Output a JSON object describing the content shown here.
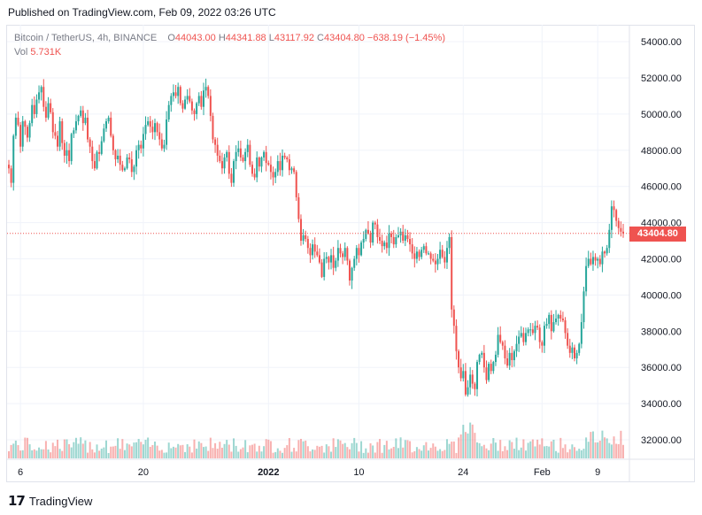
{
  "header": {
    "published": "Published on TradingView.com, Feb 09, 2022 03:26 UTC"
  },
  "legend": {
    "symbol": "Bitcoin / TetherUS, 4h, BINANCE",
    "o_label": "O",
    "o_value": "44043.00",
    "h_label": "H",
    "h_value": "44341.88",
    "l_label": "L",
    "l_value": "43117.92",
    "c_label": "C",
    "c_value": "43404.80",
    "change": "−638.19 (−1.45%)",
    "vol_label": "Vol",
    "vol_value": "5.731K"
  },
  "footer": {
    "logo": "𝟭𝟳",
    "brand": "TradingView"
  },
  "price_tag": "43404.80",
  "colors": {
    "up": "#26a69a",
    "down": "#ef5350",
    "grid": "#f0f3fa",
    "last": "#ef5350"
  },
  "chart_data": {
    "type": "candlestick",
    "y_ticks": [
      "54000.00",
      "52000.00",
      "50000.00",
      "48000.00",
      "46000.00",
      "44000.00",
      "42000.00",
      "40000.00",
      "38000.00",
      "36000.00",
      "34000.00",
      "32000.00"
    ],
    "y_tick_values": [
      54000,
      52000,
      50000,
      48000,
      46000,
      44000,
      42000,
      40000,
      38000,
      36000,
      34000,
      32000
    ],
    "x_ticks": [
      "6",
      "20",
      "2022",
      "10",
      "24",
      "Feb",
      "9"
    ],
    "x_tick_index": [
      5,
      58,
      112,
      151,
      196,
      230,
      254
    ],
    "ylim": [
      31000,
      55000
    ],
    "last_price": 43404.8,
    "candles": [
      47000,
      46200,
      48800,
      49800,
      49400,
      48200,
      49600,
      49300,
      48700,
      49500,
      50500,
      50000,
      50800,
      51200,
      51500,
      50400,
      49800,
      50600,
      50100,
      49000,
      48800,
      48200,
      49600,
      48400,
      47700,
      48000,
      47400,
      48900,
      49100,
      49600,
      49900,
      50200,
      49500,
      49800,
      48600,
      48200,
      47400,
      47000,
      47900,
      47800,
      48500,
      49200,
      49600,
      49800,
      48800,
      48000,
      47500,
      47700,
      47200,
      46900,
      47000,
      47600,
      47500,
      46800,
      47100,
      48000,
      48300,
      48100,
      48900,
      49400,
      49600,
      49300,
      49000,
      49500,
      49000,
      48600,
      48100,
      48300,
      49700,
      50500,
      51000,
      51200,
      51000,
      51500,
      50600,
      50300,
      50800,
      51000,
      50700,
      50200,
      50000,
      50600,
      51000,
      50400,
      51300,
      51500,
      51000,
      49900,
      48600,
      48300,
      47700,
      47400,
      47000,
      47600,
      47900,
      46700,
      46200,
      47400,
      47900,
      48100,
      47600,
      47400,
      47900,
      48300,
      47200,
      46700,
      46500,
      47600,
      47100,
      47600,
      47900,
      47300,
      47200,
      46800,
      46500,
      46800,
      47400,
      46900,
      47700,
      47600,
      47500,
      46900,
      47000,
      46800,
      45400,
      44200,
      43000,
      43300,
      43100,
      42600,
      42200,
      42800,
      42400,
      42200,
      41800,
      41000,
      42000,
      42100,
      41800,
      42200,
      41500,
      41900,
      42600,
      42300,
      42100,
      42600,
      41900,
      40800,
      41500,
      42000,
      42600,
      42200,
      42900,
      43100,
      43600,
      43400,
      42900,
      44000,
      43900,
      43200,
      43000,
      42700,
      42900,
      42600,
      43400,
      43200,
      42800,
      43200,
      43300,
      43500,
      43000,
      43300,
      43100,
      42800,
      42300,
      42000,
      42400,
      42100,
      42500,
      42700,
      42300,
      42300,
      42000,
      41900,
      41700,
      42000,
      42500,
      42100,
      41800,
      42600,
      43200,
      39200,
      38300,
      36900,
      36000,
      35400,
      35800,
      34500,
      34900,
      35600,
      35100,
      34800,
      36300,
      36700,
      36800,
      36000,
      35300,
      36200,
      35800,
      36300,
      36700,
      37800,
      37400,
      37200,
      36500,
      36100,
      36800,
      36400,
      36900,
      37300,
      37700,
      37900,
      37400,
      37900,
      38100,
      38100,
      37900,
      38300,
      38200,
      37400,
      37200,
      38300,
      38400,
      38900,
      38000,
      38500,
      38700,
      38900,
      38700,
      38600,
      37900,
      37200,
      36800,
      37100,
      36500,
      36800,
      37300,
      38500,
      40200,
      41600,
      42000,
      41700,
      42100,
      41900,
      42000,
      41700,
      42400,
      42300,
      42600,
      43600,
      44900,
      44700,
      44100,
      43700,
      43500,
      43404
    ]
  }
}
